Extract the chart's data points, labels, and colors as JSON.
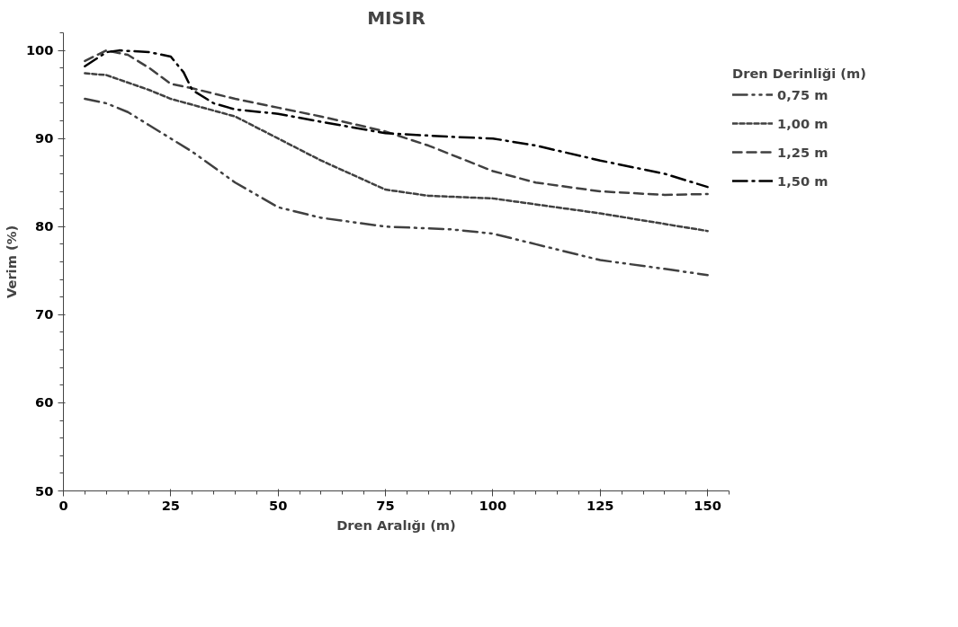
{
  "chart_data": {
    "type": "line",
    "title": "MISIR",
    "xlabel": "Dren Aralığı (m)",
    "ylabel": "Verim (%)",
    "legend_title": "Dren Derinliği (m)",
    "legend": "right",
    "grid": false,
    "xlim": [
      0,
      155
    ],
    "xticks": [
      0,
      25,
      50,
      75,
      100,
      125,
      150
    ],
    "ylim": [
      50,
      102
    ],
    "yticks": [
      50,
      60,
      70,
      80,
      90,
      100
    ],
    "series": [
      {
        "name": "0,75 m",
        "color": "#404040",
        "line_style": "dashdotdot",
        "x": [
          5,
          10,
          15,
          20,
          25,
          30,
          40,
          50,
          60,
          75,
          90,
          100,
          110,
          125,
          140,
          150
        ],
        "values": [
          94.5,
          94,
          93,
          91.5,
          90,
          88.5,
          85,
          82.2,
          81,
          80,
          79.7,
          79.2,
          78,
          76.2,
          75.2,
          74.5
        ]
      },
      {
        "name": "1,00 m",
        "color": "#404040",
        "line_style": "dotted",
        "x": [
          5,
          10,
          20,
          25,
          40,
          50,
          60,
          75,
          85,
          100,
          125,
          150
        ],
        "values": [
          97.4,
          97.2,
          95.5,
          94.5,
          92.5,
          90,
          87.5,
          84.2,
          83.5,
          83.2,
          81.5,
          79.5
        ]
      },
      {
        "name": "1,25 m",
        "color": "#404040",
        "line_style": "dashed",
        "x": [
          5,
          10,
          15,
          20,
          25,
          30,
          40,
          50,
          60,
          75,
          85,
          100,
          110,
          125,
          140,
          150
        ],
        "values": [
          98.8,
          100,
          99.5,
          98,
          96.2,
          95.7,
          94.5,
          93.5,
          92.5,
          90.8,
          89.2,
          86.3,
          85,
          84,
          83.6,
          83.7
        ]
      },
      {
        "name": "1,50 m",
        "color": "#000000",
        "line_style": "dashdot",
        "x": [
          5,
          10,
          13,
          20,
          25,
          28,
          30,
          35,
          40,
          50,
          60,
          75,
          90,
          100,
          110,
          125,
          140,
          150
        ],
        "values": [
          98.2,
          99.8,
          100,
          99.8,
          99.3,
          97.5,
          95.5,
          94,
          93.3,
          92.8,
          91.9,
          90.6,
          90.2,
          90,
          89.2,
          87.5,
          86,
          84.5
        ]
      }
    ]
  }
}
